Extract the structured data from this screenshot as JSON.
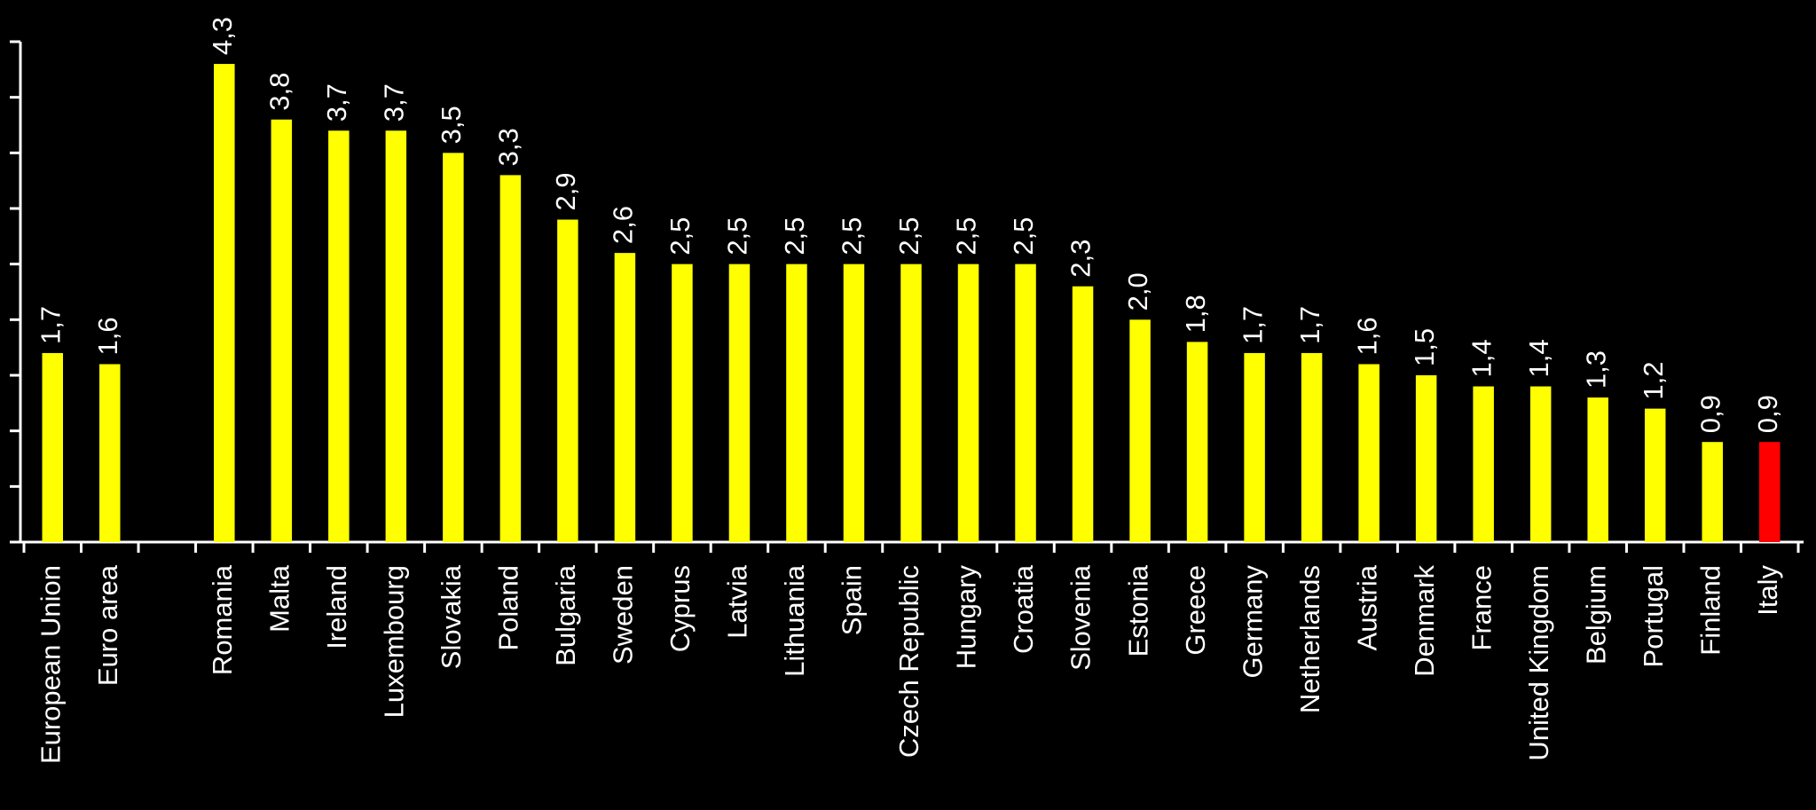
{
  "chart_data": {
    "type": "bar",
    "categories": [
      "European Union",
      "Euro area",
      null,
      "Romania",
      "Malta",
      "Ireland",
      "Luxembourg",
      "Slovakia",
      "Poland",
      "Bulgaria",
      "Sweden",
      "Cyprus",
      "Latvia",
      "Lithuania",
      "Spain",
      "Czech Republic",
      "Hungary",
      "Croatia",
      "Slovenia",
      "Estonia",
      "Greece",
      "Germany",
      "Netherlands",
      "Austria",
      "Denmark",
      "France",
      "United Kingdom",
      "Belgium",
      "Portugal",
      "Finland",
      "Italy"
    ],
    "values": [
      1.7,
      1.6,
      null,
      4.3,
      3.8,
      3.7,
      3.7,
      3.5,
      3.3,
      2.9,
      2.6,
      2.5,
      2.5,
      2.5,
      2.5,
      2.5,
      2.5,
      2.5,
      2.3,
      2.0,
      1.8,
      1.7,
      1.7,
      1.6,
      1.5,
      1.4,
      1.4,
      1.3,
      1.2,
      0.9,
      0.9
    ],
    "value_labels": [
      "1,7",
      "1,6",
      null,
      "4,3",
      "3,8",
      "3,7",
      "3,7",
      "3,5",
      "3,3",
      "2,9",
      "2,6",
      "2,5",
      "2,5",
      "2,5",
      "2,5",
      "2,5",
      "2,5",
      "2,5",
      "2,3",
      "2,0",
      "1,8",
      "1,7",
      "1,7",
      "1,6",
      "1,5",
      "1,4",
      "1,4",
      "1,3",
      "1,2",
      "0,9",
      "0,9"
    ],
    "colors": [
      "#ffff00",
      "#ffff00",
      null,
      "#ffff00",
      "#ffff00",
      "#ffff00",
      "#ffff00",
      "#ffff00",
      "#ffff00",
      "#ffff00",
      "#ffff00",
      "#ffff00",
      "#ffff00",
      "#ffff00",
      "#ffff00",
      "#ffff00",
      "#ffff00",
      "#ffff00",
      "#ffff00",
      "#ffff00",
      "#ffff00",
      "#ffff00",
      "#ffff00",
      "#ffff00",
      "#ffff00",
      "#ffff00",
      "#ffff00",
      "#ffff00",
      "#ffff00",
      "#ffff00",
      "#ff0000"
    ],
    "ylim": [
      0,
      4.5
    ],
    "yticks": [
      0,
      0.5,
      1,
      1.5,
      2,
      2.5,
      3,
      3.5,
      4,
      4.5
    ],
    "grid": false
  }
}
